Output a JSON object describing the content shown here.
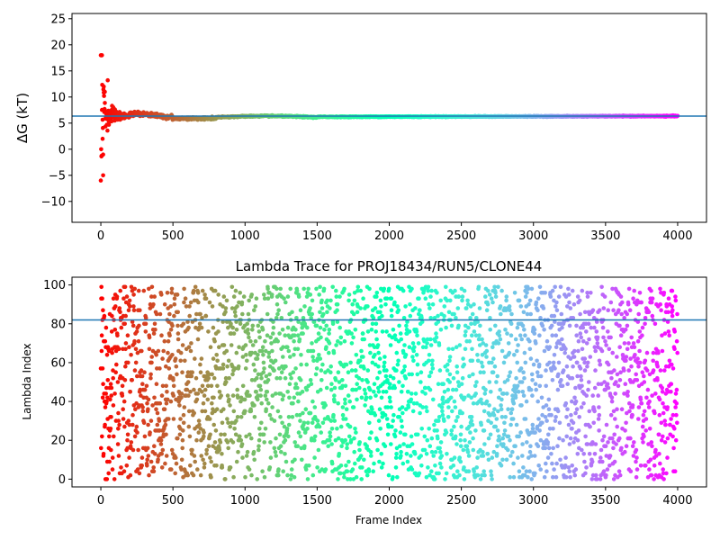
{
  "chart_data": [
    {
      "type": "scatter",
      "title": "",
      "xlabel": "",
      "ylabel": "ΔG (kT)",
      "xlim": [
        -200,
        4200
      ],
      "ylim": [
        -14,
        26
      ],
      "xticks": [
        0,
        500,
        1000,
        1500,
        2000,
        2500,
        3000,
        3500,
        4000
      ],
      "yticks": [
        -10,
        -5,
        0,
        5,
        10,
        15,
        20,
        25
      ],
      "xtick_labels": [
        "0",
        "500",
        "1000",
        "1500",
        "2000",
        "2500",
        "3000",
        "3500",
        "4000"
      ],
      "ytick_labels": [
        "−10",
        "−5",
        "0",
        "5",
        "10",
        "15",
        "20",
        "25"
      ],
      "grid": false,
      "colormap": "rainbow (reversed: red at frame 0 → violet at frame 4000)",
      "reference_line": {
        "orientation": "horizontal",
        "y": 6.35,
        "color": "#1f77b4"
      },
      "series": [
        {
          "x_range": [
            0,
            4000
          ],
          "converged_value": 6.3,
          "early_spread": [
            -6,
            18
          ]
        }
      ]
    },
    {
      "type": "scatter",
      "title": "Lambda Trace for PROJ18434/RUN5/CLONE44",
      "xlabel": "Frame Index",
      "ylabel": "Lambda Index",
      "xlim": [
        -200,
        4200
      ],
      "ylim": [
        -4,
        104
      ],
      "xticks": [
        0,
        500,
        1000,
        1500,
        2000,
        2500,
        3000,
        3500,
        4000
      ],
      "yticks": [
        0,
        20,
        40,
        60,
        80,
        100
      ],
      "xtick_labels": [
        "0",
        "500",
        "1000",
        "1500",
        "2000",
        "2500",
        "3000",
        "3500",
        "4000"
      ],
      "ytick_labels": [
        "0",
        "20",
        "40",
        "60",
        "80",
        "100"
      ],
      "grid": false,
      "colormap": "rainbow (reversed: red at frame 0 → violet at frame 4000)",
      "reference_line": {
        "orientation": "horizontal",
        "y": 82,
        "color": "#1f77b4"
      },
      "series": [
        {
          "x_range": [
            0,
            4000
          ],
          "y_range": [
            0,
            99
          ]
        }
      ]
    }
  ]
}
